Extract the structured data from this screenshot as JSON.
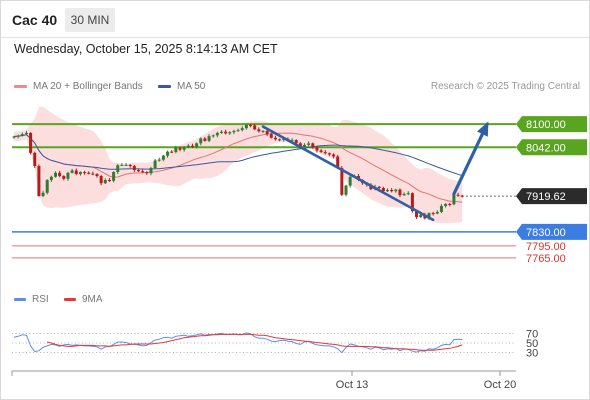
{
  "header": {
    "instrument": "Cac 40",
    "timeframe": "30 MIN",
    "datetime": "Wednesday, October 15, 2025 8:14:13 AM CET"
  },
  "legend": {
    "items": [
      {
        "label": "MA 20 + Bollinger Bands",
        "color": "#f08a8a"
      },
      {
        "label": "MA 50",
        "color": "#3a5aa0"
      }
    ],
    "copyright": "Research © 2025 Trading Central"
  },
  "colors": {
    "bull": "#2e7d32",
    "bear": "#b71c1c",
    "resistance": "#5aa51f",
    "support": "#3b7de1",
    "target_line": "#e57373",
    "arrow": "#2f5fa8",
    "rsi": "#5b8def",
    "rsi_ma": "#e53935"
  },
  "chart_data": [
    {
      "type": "candlestick",
      "name": "Cac 40 30 MIN",
      "price_range": [
        7752,
        8138
      ],
      "last_price": 7919.62,
      "levels": [
        {
          "value": 8100.0,
          "label": "8100.00",
          "kind": "resistance"
        },
        {
          "value": 8042.0,
          "label": "8042.00",
          "kind": "resistance"
        },
        {
          "value": 7919.62,
          "label": "7919.62",
          "kind": "last"
        },
        {
          "value": 7830.0,
          "label": "7830.00",
          "kind": "support"
        },
        {
          "value": 7795.0,
          "label": "7795.00",
          "kind": "target"
        },
        {
          "value": 7765.0,
          "label": "7765.00",
          "kind": "target"
        }
      ],
      "trendline": {
        "from": {
          "bar": 60,
          "price": 8094
        },
        "to": {
          "bar": 101,
          "price": 7860
        }
      },
      "projection_arrow": {
        "from": {
          "bar": 106,
          "price": 7925
        },
        "to": {
          "bar": 114,
          "price": 8100
        }
      },
      "closes": [
        8069,
        8071,
        8075,
        8078,
        8028,
        7995,
        7920,
        7928,
        7960,
        7968,
        7978,
        7970,
        7963,
        7978,
        7984,
        7975,
        7980,
        7978,
        7976,
        7975,
        7970,
        7952,
        7960,
        7958,
        7980,
        7997,
        7998,
        7998,
        7995,
        7985,
        7982,
        7980,
        7977,
        7990,
        8009,
        8011,
        8021,
        8031,
        8030,
        8041,
        8036,
        8042,
        8046,
        8043,
        8052,
        8064,
        8058,
        8070,
        8072,
        8078,
        8081,
        8077,
        8080,
        8083,
        8085,
        8090,
        8098,
        8097,
        8087,
        8082,
        8083,
        8075,
        8066,
        8062,
        8061,
        8063,
        8060,
        8060,
        8052,
        8044,
        8048,
        8052,
        8042,
        8034,
        8030,
        8027,
        8024,
        8019,
        7990,
        7923,
        7946,
        7968,
        7970,
        7960,
        7952,
        7948,
        7937,
        7943,
        7940,
        7932,
        7935,
        7932,
        7936,
        7922,
        7925,
        7927,
        7882,
        7867,
        7873,
        7864,
        7877,
        7876,
        7880,
        7895,
        7900,
        7899,
        7923,
        7921,
        7920
      ]
    },
    {
      "type": "line",
      "name": "RSI",
      "ylim": [
        0,
        100
      ],
      "y_ticks": [
        70,
        50,
        30
      ],
      "x_ticks": [
        "Oct 13",
        "Oct 20"
      ],
      "series": [
        {
          "name": "RSI",
          "values": [
            62,
            64,
            67,
            66,
            44,
            32,
            34,
            41,
            44,
            47,
            46,
            43,
            46,
            47,
            45,
            46,
            45,
            44,
            44,
            43,
            42,
            37,
            42,
            43,
            47,
            52,
            52,
            51,
            48,
            47,
            46,
            44,
            45,
            51,
            56,
            58,
            61,
            62,
            60,
            64,
            65,
            66,
            64,
            65,
            67,
            69,
            66,
            68,
            67,
            69,
            70,
            68,
            68,
            69,
            67,
            67,
            71,
            69,
            63,
            60,
            60,
            58,
            54,
            53,
            55,
            56,
            54,
            53,
            49,
            47,
            52,
            54,
            49,
            46,
            45,
            44,
            44,
            42,
            38,
            30,
            41,
            48,
            46,
            43,
            42,
            40,
            37,
            41,
            40,
            36,
            38,
            37,
            39,
            34,
            37,
            37,
            33,
            31,
            34,
            33,
            38,
            37,
            40,
            45,
            47,
            46,
            57,
            58,
            57
          ]
        },
        {
          "name": "9MA",
          "values": [
            null,
            null,
            null,
            null,
            null,
            null,
            null,
            null,
            52,
            50,
            47,
            45,
            44,
            43,
            43,
            44,
            45,
            45,
            45,
            45,
            44,
            44,
            44,
            43,
            44,
            45,
            46,
            46,
            47,
            48,
            48,
            48,
            48,
            48,
            49,
            50,
            51,
            53,
            55,
            57,
            59,
            61,
            62,
            63,
            64,
            65,
            65,
            66,
            67,
            67,
            68,
            68,
            68,
            68,
            68,
            68,
            68,
            68,
            67,
            66,
            66,
            65,
            63,
            61,
            60,
            59,
            58,
            57,
            56,
            55,
            54,
            53,
            52,
            51,
            50,
            49,
            48,
            47,
            46,
            44,
            43,
            43,
            43,
            43,
            43,
            43,
            42,
            42,
            41,
            40,
            40,
            39,
            38,
            38,
            38,
            37,
            37,
            36,
            35,
            35,
            35,
            35,
            36,
            37,
            38,
            39,
            41,
            43,
            46
          ]
        }
      ]
    }
  ]
}
